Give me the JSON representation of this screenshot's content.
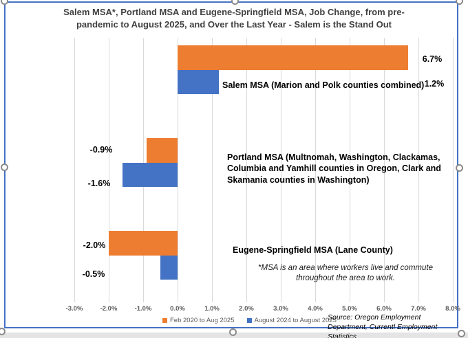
{
  "chart_data": {
    "type": "bar",
    "orientation": "horizontal",
    "title": "Salem MSA*, Portland MSA and Eugene-Springfield MSA, Job Change, from pre-pandemic to August 2025, and Over the Last Year - Salem is the Stand Out",
    "categories": [
      "Salem MSA (Marion and Polk counties combined)",
      "Portland MSA (Multnomah, Washington, Clackamas, Columbia and Yamhill counties in Oregon, Clark and Skamania counties in Washington)",
      "Eugene-Springfield MSA (Lane County)"
    ],
    "series": [
      {
        "name": "Feb 2020 to Aug 2025",
        "color": "#ED7D31",
        "values": [
          6.7,
          -0.9,
          -2.0
        ],
        "labels": [
          "6.7%",
          "-0.9%",
          "-2.0%"
        ]
      },
      {
        "name": "August 2024 to August 2025",
        "color": "#4472C4",
        "values": [
          1.2,
          -1.6,
          -0.5
        ],
        "labels": [
          "1.2%",
          "-1.6%",
          "-0.5%"
        ]
      }
    ],
    "xlim": [
      -3.0,
      8.0
    ],
    "x_tick_labels": [
      "-3.0%",
      "-2.0%",
      "-1.0%",
      "0.0%",
      "1.0%",
      "2.0%",
      "3.0%",
      "4.0%",
      "5.0%",
      "6.0%",
      "7.0%",
      "8.0%"
    ],
    "grid": true,
    "legend_position": "bottom",
    "footnote": "*MSA is an area where workers live and commute throughout the area to work.",
    "source": "Source: Oregon Employment Department, Currentl Employment Statistics"
  },
  "colors": {
    "bar_orange": "#ED7D31",
    "bar_blue": "#4472C4",
    "chart_border": "#4472C4",
    "gridline": "#D9D9D9",
    "title_text": "#404040",
    "axis_text": "#595959"
  }
}
